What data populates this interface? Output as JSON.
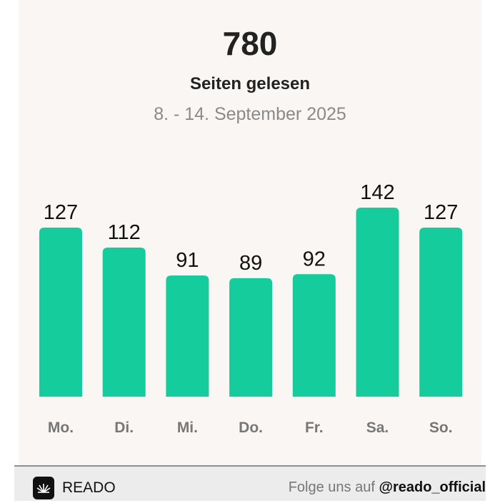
{
  "header": {
    "total": "780",
    "subtitle": "Seiten gelesen",
    "period": "8. - 14. September 2025"
  },
  "chart_data": {
    "type": "bar",
    "title": "Seiten gelesen",
    "categories": [
      "Mo.",
      "Di.",
      "Mi.",
      "Do.",
      "Fr.",
      "Sa.",
      "So."
    ],
    "values": [
      127,
      112,
      91,
      89,
      92,
      142,
      127
    ],
    "ylim": [
      0,
      142
    ],
    "grid": false,
    "bar_color": "#14cc9c"
  },
  "footer": {
    "brand": "READO",
    "follow_prefix": "Folge uns auf",
    "handle": "@reado_official"
  }
}
